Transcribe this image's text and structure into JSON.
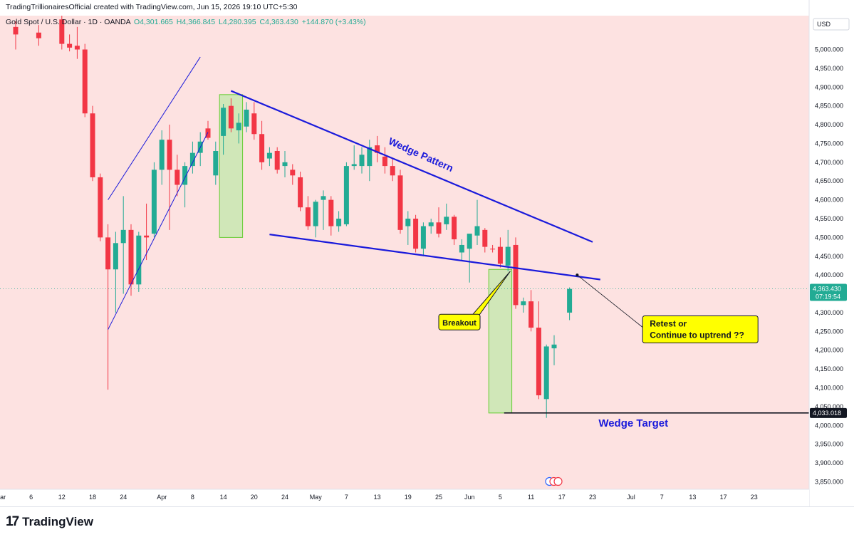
{
  "header": {
    "attribution": "TradingTrillionairesOfficial created with TradingView.com, Jun 15, 2026 19:10 UTC+5:30"
  },
  "footer": {
    "logo_text": "TradingView"
  },
  "colors": {
    "background": "#fde2e1",
    "up": "#22ab94",
    "down": "#f23645",
    "wedge_line": "#1a1adb",
    "box_fill": "#c8e8b0",
    "box_stroke": "#66cc33",
    "callout_fill": "#ffff00",
    "price_tag": "#22ab94"
  },
  "chart_data": {
    "type": "candlestick",
    "title": "Gold Spot / U.S. Dollar · 1D · OANDA",
    "legend": {
      "symbol": "Gold Spot / U.S. Dollar · 1D · OANDA",
      "open": "O4,301.665",
      "high": "H4,366.845",
      "low": "L4,280.395",
      "close": "C4,363.430",
      "change": "+144.870 (+3.43%)"
    },
    "currency": "USD",
    "ylim": [
      3830,
      5090
    ],
    "y_ticks": [
      "5,000.000",
      "4,950.000",
      "4,900.000",
      "4,850.000",
      "4,800.000",
      "4,750.000",
      "4,700.000",
      "4,650.000",
      "4,600.000",
      "4,550.000",
      "4,500.000",
      "4,450.000",
      "4,400.000",
      "4,350.000",
      "4,300.000",
      "4,250.000",
      "4,200.000",
      "4,150.000",
      "4,100.000",
      "4,050.000",
      "4,000.000",
      "3,950.000",
      "3,900.000",
      "3,850.000"
    ],
    "x_ticks": [
      {
        "label": "Mar",
        "x": -2
      },
      {
        "label": "6",
        "x": 2
      },
      {
        "label": "12",
        "x": 6
      },
      {
        "label": "18",
        "x": 10
      },
      {
        "label": "24",
        "x": 14
      },
      {
        "label": "Apr",
        "x": 19
      },
      {
        "label": "8",
        "x": 23
      },
      {
        "label": "14",
        "x": 27
      },
      {
        "label": "20",
        "x": 31
      },
      {
        "label": "24",
        "x": 35
      },
      {
        "label": "May",
        "x": 39
      },
      {
        "label": "7",
        "x": 43
      },
      {
        "label": "13",
        "x": 47
      },
      {
        "label": "19",
        "x": 51
      },
      {
        "label": "25",
        "x": 55
      },
      {
        "label": "Jun",
        "x": 59
      },
      {
        "label": "5",
        "x": 63
      },
      {
        "label": "11",
        "x": 67
      },
      {
        "label": "17",
        "x": 71
      },
      {
        "label": "23",
        "x": 75
      },
      {
        "label": "Jul",
        "x": 80
      },
      {
        "label": "7",
        "x": 84
      },
      {
        "label": "13",
        "x": 88
      },
      {
        "label": "17",
        "x": 92
      },
      {
        "label": "23",
        "x": 96
      }
    ],
    "candles": [
      {
        "x": 0,
        "o": 5060,
        "h": 5075,
        "l": 5000,
        "c": 5040
      },
      {
        "x": 3,
        "o": 5045,
        "h": 5065,
        "l": 5010,
        "c": 5030
      },
      {
        "x": 6,
        "o": 5080,
        "h": 5090,
        "l": 5000,
        "c": 5015
      },
      {
        "x": 7,
        "o": 5015,
        "h": 5040,
        "l": 4995,
        "c": 5005
      },
      {
        "x": 8,
        "o": 5010,
        "h": 5060,
        "l": 4975,
        "c": 5000
      },
      {
        "x": 9,
        "o": 5000,
        "h": 5015,
        "l": 4820,
        "c": 4830
      },
      {
        "x": 10,
        "o": 4830,
        "h": 4850,
        "l": 4650,
        "c": 4660
      },
      {
        "x": 11,
        "o": 4660,
        "h": 4670,
        "l": 4490,
        "c": 4500
      },
      {
        "x": 12,
        "o": 4500,
        "h": 4535,
        "l": 4095,
        "c": 4415
      },
      {
        "x": 13,
        "o": 4415,
        "h": 4515,
        "l": 4300,
        "c": 4485
      },
      {
        "x": 14,
        "o": 4485,
        "h": 4610,
        "l": 4350,
        "c": 4520
      },
      {
        "x": 15,
        "o": 4520,
        "h": 4535,
        "l": 4345,
        "c": 4375
      },
      {
        "x": 16,
        "o": 4375,
        "h": 4515,
        "l": 4355,
        "c": 4505
      },
      {
        "x": 17,
        "o": 4505,
        "h": 4590,
        "l": 4440,
        "c": 4500
      },
      {
        "x": 18,
        "o": 4510,
        "h": 4700,
        "l": 4500,
        "c": 4680
      },
      {
        "x": 19,
        "o": 4680,
        "h": 4785,
        "l": 4640,
        "c": 4760
      },
      {
        "x": 20,
        "o": 4760,
        "h": 4800,
        "l": 4520,
        "c": 4680
      },
      {
        "x": 21,
        "o": 4680,
        "h": 4720,
        "l": 4610,
        "c": 4640
      },
      {
        "x": 22,
        "o": 4640,
        "h": 4700,
        "l": 4580,
        "c": 4690
      },
      {
        "x": 23,
        "o": 4690,
        "h": 4755,
        "l": 4670,
        "c": 4725
      },
      {
        "x": 24,
        "o": 4725,
        "h": 4780,
        "l": 4690,
        "c": 4755
      },
      {
        "x": 25,
        "o": 4790,
        "h": 4810,
        "l": 4760,
        "c": 4765
      },
      {
        "x": 26,
        "o": 4665,
        "h": 4755,
        "l": 4640,
        "c": 4730
      },
      {
        "x": 27,
        "o": 4770,
        "h": 4855,
        "l": 4720,
        "c": 4845
      },
      {
        "x": 28,
        "o": 4850,
        "h": 4870,
        "l": 4780,
        "c": 4790
      },
      {
        "x": 29,
        "o": 4785,
        "h": 4830,
        "l": 4750,
        "c": 4805
      },
      {
        "x": 30,
        "o": 4795,
        "h": 4860,
        "l": 4780,
        "c": 4840
      },
      {
        "x": 31,
        "o": 4830,
        "h": 4860,
        "l": 4760,
        "c": 4775
      },
      {
        "x": 32,
        "o": 4775,
        "h": 4810,
        "l": 4680,
        "c": 4700
      },
      {
        "x": 33,
        "o": 4710,
        "h": 4740,
        "l": 4690,
        "c": 4725
      },
      {
        "x": 34,
        "o": 4730,
        "h": 4740,
        "l": 4670,
        "c": 4680
      },
      {
        "x": 35,
        "o": 4690,
        "h": 4730,
        "l": 4660,
        "c": 4700
      },
      {
        "x": 36,
        "o": 4680,
        "h": 4695,
        "l": 4640,
        "c": 4665
      },
      {
        "x": 37,
        "o": 4660,
        "h": 4675,
        "l": 4570,
        "c": 4580
      },
      {
        "x": 38,
        "o": 4580,
        "h": 4610,
        "l": 4520,
        "c": 4530
      },
      {
        "x": 39,
        "o": 4530,
        "h": 4600,
        "l": 4500,
        "c": 4595
      },
      {
        "x": 40,
        "o": 4600,
        "h": 4625,
        "l": 4520,
        "c": 4610
      },
      {
        "x": 41,
        "o": 4600,
        "h": 4610,
        "l": 4505,
        "c": 4530
      },
      {
        "x": 42,
        "o": 4530,
        "h": 4570,
        "l": 4515,
        "c": 4550
      },
      {
        "x": 43,
        "o": 4535,
        "h": 4700,
        "l": 4530,
        "c": 4690
      },
      {
        "x": 44,
        "o": 4690,
        "h": 4745,
        "l": 4680,
        "c": 4695
      },
      {
        "x": 45,
        "o": 4690,
        "h": 4740,
        "l": 4670,
        "c": 4720
      },
      {
        "x": 46,
        "o": 4690,
        "h": 4760,
        "l": 4650,
        "c": 4740
      },
      {
        "x": 47,
        "o": 4745,
        "h": 4770,
        "l": 4700,
        "c": 4725
      },
      {
        "x": 48,
        "o": 4715,
        "h": 4740,
        "l": 4670,
        "c": 4690
      },
      {
        "x": 49,
        "o": 4690,
        "h": 4710,
        "l": 4650,
        "c": 4665
      },
      {
        "x": 50,
        "o": 4665,
        "h": 4680,
        "l": 4510,
        "c": 4520
      },
      {
        "x": 51,
        "o": 4530,
        "h": 4570,
        "l": 4480,
        "c": 4550
      },
      {
        "x": 52,
        "o": 4550,
        "h": 4560,
        "l": 4460,
        "c": 4470
      },
      {
        "x": 53,
        "o": 4470,
        "h": 4540,
        "l": 4450,
        "c": 4530
      },
      {
        "x": 54,
        "o": 4530,
        "h": 4550,
        "l": 4510,
        "c": 4540
      },
      {
        "x": 55,
        "o": 4540,
        "h": 4580,
        "l": 4500,
        "c": 4510
      },
      {
        "x": 56,
        "o": 4535,
        "h": 4590,
        "l": 4520,
        "c": 4555
      },
      {
        "x": 57,
        "o": 4555,
        "h": 4560,
        "l": 4480,
        "c": 4495
      },
      {
        "x": 58,
        "o": 4460,
        "h": 4495,
        "l": 4440,
        "c": 4480
      },
      {
        "x": 59,
        "o": 4470,
        "h": 4500,
        "l": 4380,
        "c": 4510
      },
      {
        "x": 60,
        "o": 4505,
        "h": 4600,
        "l": 4480,
        "c": 4530
      },
      {
        "x": 61,
        "o": 4520,
        "h": 4525,
        "l": 4460,
        "c": 4475
      },
      {
        "x": 62,
        "o": 4470,
        "h": 4480,
        "l": 4460,
        "c": 4468
      },
      {
        "x": 63,
        "o": 4475,
        "h": 4500,
        "l": 4420,
        "c": 4430
      },
      {
        "x": 64,
        "o": 4425,
        "h": 4520,
        "l": 4410,
        "c": 4475
      },
      {
        "x": 65,
        "o": 4480,
        "h": 4500,
        "l": 4310,
        "c": 4320
      },
      {
        "x": 66,
        "o": 4320,
        "h": 4340,
        "l": 4300,
        "c": 4330
      },
      {
        "x": 67,
        "o": 4330,
        "h": 4360,
        "l": 4250,
        "c": 4260
      },
      {
        "x": 68,
        "o": 4260,
        "h": 4330,
        "l": 4070,
        "c": 4080
      },
      {
        "x": 69,
        "o": 4070,
        "h": 4215,
        "l": 4020,
        "c": 4210
      },
      {
        "x": 70,
        "o": 4205,
        "h": 4240,
        "l": 4160,
        "c": 4215
      },
      {
        "x": 72,
        "o": 4300,
        "h": 4367,
        "l": 4280,
        "c": 4363
      }
    ],
    "wedge_upper": [
      {
        "x": 28,
        "y": 4890
      },
      {
        "x": 75,
        "y": 4488
      }
    ],
    "wedge_lower": [
      {
        "x": 33,
        "y": 4508
      },
      {
        "x": 76,
        "y": 4388
      }
    ],
    "rising_channel": {
      "lower": [
        {
          "x": 12,
          "y": 4255
        },
        {
          "x": 25,
          "y": 4780
        }
      ],
      "upper": [
        {
          "x": 12,
          "y": 4600
        },
        {
          "x": 24,
          "y": 4980
        }
      ]
    },
    "boxes": [
      {
        "x0": 26.5,
        "x1": 29.5,
        "y0": 4500,
        "y1": 4880
      },
      {
        "x0": 61.5,
        "x1": 64.5,
        "y0": 4033,
        "y1": 4415
      }
    ],
    "target_level": 4033.018,
    "target_label": "4,033.018",
    "last_price": 4363.43,
    "last_price_label": "4,363.430",
    "countdown": "07:19:54",
    "annotations": {
      "wedge_pattern": "Wedge Pattern",
      "breakout": "Breakout",
      "retest_line1": "Retest or",
      "retest_line2": "Continue to uptrend ??",
      "wedge_target": "Wedge Target"
    }
  }
}
